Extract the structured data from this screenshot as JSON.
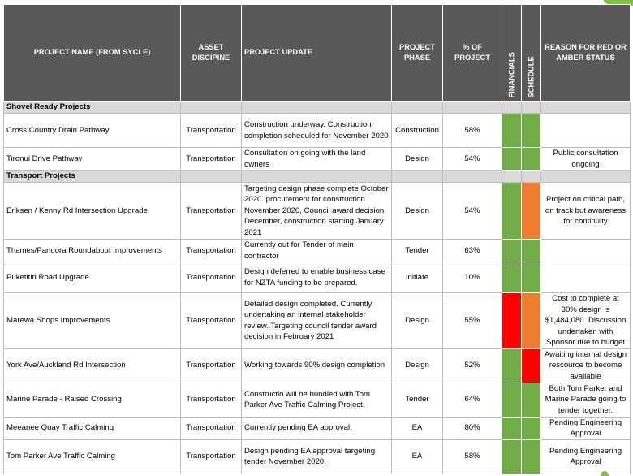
{
  "headers": {
    "name": "PROJECT NAME (FROM SYCLE)",
    "discipline": "ASSET DISCIPINE",
    "update": "PROJECT UPDATE",
    "phase": "PROJECT PHASE",
    "pct": "% OF PROJECT",
    "financials": "FINANCIALS",
    "schedule": "SCHEDULE",
    "reason": "REASON FOR RED OR AMBER STATUS"
  },
  "colors": {
    "green": "#70ad47",
    "amber": "#ed7d31",
    "red": "#ff0000"
  },
  "sections": [
    {
      "title": "Shovel Ready Projects",
      "rows": [
        {
          "name": "Cross Country Drain Pathway",
          "discipline": "Transportation",
          "update": "Construction underway. Construction completion scheduled for November 2020",
          "phase": "Construction",
          "pct": "58%",
          "financials": "green",
          "schedule": "green",
          "reason": ""
        },
        {
          "name": "Tironui Drive Pathway",
          "discipline": "Transportation",
          "update": "Consultation on going with the land owners",
          "phase": "Design",
          "pct": "54%",
          "financials": "green",
          "schedule": "green",
          "reason": "Public consultation ongoing"
        }
      ]
    },
    {
      "title": "Transport Projects",
      "rows": [
        {
          "name": "Eriksen / Kenny Rd Intersection Upgrade",
          "discipline": "Transportation",
          "update": " Targeting design phase complete October 2020. procurement for construction November 2020, Council award decision December,  construction starting January 2021",
          "phase": "Design",
          "pct": "54%",
          "financials": "green",
          "schedule": "amber",
          "reason": "Project on critical path, on track but awareness for continuity"
        },
        {
          "name": "Thames/Pandora Roundabout Improvements",
          "discipline": "Transportation",
          "update": "Currently out for Tender of main contractor",
          "phase": "Tender",
          "pct": "63%",
          "financials": "green",
          "schedule": "green",
          "reason": ""
        },
        {
          "name": "Puketitiri Road Upgrade",
          "discipline": "Transportation",
          "update": "Design deferred to enable business case for NZTA funding to be prepared.",
          "phase": "Initiate",
          "pct": "10%",
          "financials": "green",
          "schedule": "green",
          "reason": ""
        },
        {
          "name": "Marewa Shops Improvements",
          "discipline": "Transportation",
          "update": " Detailed design completed. Currently undertaking an  internal stakeholder review. Targeting council tender award decision in February 2021",
          "phase": "Design",
          "pct": "55%",
          "financials": "red",
          "schedule": "amber",
          "reason": "Cost to complete at 30% design is $1,484,080. Discussion undertaken with Sponsor due to budget"
        },
        {
          "name": "York Ave/Auckland Rd Intersection",
          "discipline": "Transportation",
          "update": "Working towards 90% design completion",
          "phase": "Design",
          "pct": "52%",
          "financials": "green",
          "schedule": "red",
          "reason": "Awaiting internal design rescource to become available"
        },
        {
          "name": "Marine Parade - Raised Crossing",
          "discipline": "Transportation",
          "update": "Constructio will be bundled with Tom Parker Ave Traffic Calming Project.",
          "phase": "Tender",
          "pct": "64%",
          "financials": "green",
          "schedule": "green",
          "reason": "Both Tom Parker and Marine Parade going to tender together."
        },
        {
          "name": "Meeanee Quay Traffic Calming",
          "discipline": "Transportation",
          "update": "Currently pending EA approval.",
          "phase": "EA",
          "pct": "80%",
          "financials": "green",
          "schedule": "green",
          "reason": "Pending Engineering Approval"
        },
        {
          "name": "Tom Parker Ave Traffic Calming",
          "discipline": "Transportation",
          "update": "Design pending EA approval targeting tender November 2020.",
          "phase": "EA",
          "pct": "58%",
          "financials": "green",
          "schedule": "green",
          "reason": "Pending Engineering Approval"
        }
      ]
    }
  ]
}
